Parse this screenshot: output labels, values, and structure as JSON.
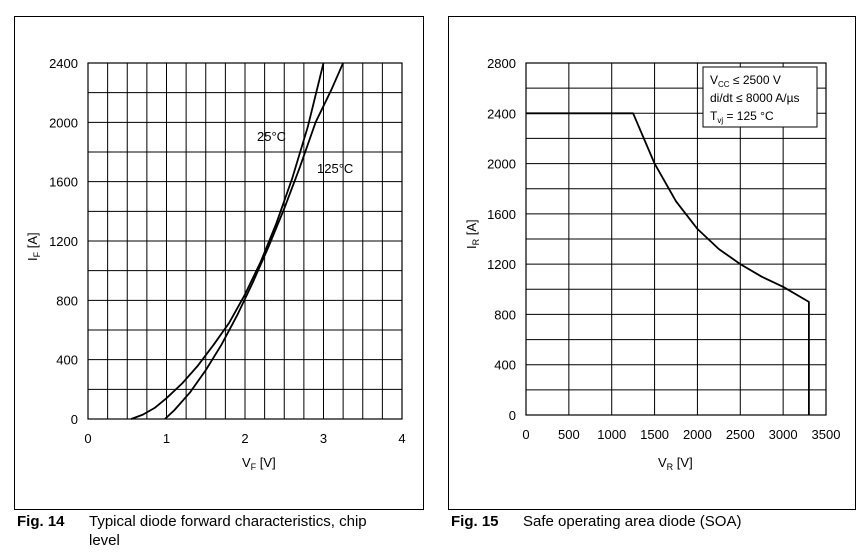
{
  "figures": [
    {
      "caption_number": "Fig. 14",
      "caption_text": "Typical diode forward characteristics, chip level"
    },
    {
      "caption_number": "Fig. 15",
      "caption_text": "Safe operating area diode (SOA)"
    }
  ],
  "chart_data": [
    {
      "type": "line",
      "title": "",
      "xlabel": "VF [V]",
      "ylabel": "IF [A]",
      "xlim": [
        0,
        4
      ],
      "ylim": [
        0,
        2400
      ],
      "xticks": [
        0,
        1,
        2,
        3,
        4
      ],
      "yticks": [
        0,
        400,
        800,
        1200,
        1600,
        2000,
        2400
      ],
      "grid": true,
      "series": [
        {
          "name": "25°C",
          "x": [
            0.55,
            0.7,
            0.85,
            1.0,
            1.2,
            1.4,
            1.6,
            1.8,
            2.0,
            2.2,
            2.4,
            2.6,
            2.8,
            3.0
          ],
          "y": [
            0,
            30,
            75,
            140,
            240,
            360,
            500,
            650,
            840,
            1060,
            1320,
            1620,
            1970,
            2400
          ]
        },
        {
          "name": "125°C",
          "x": [
            0.98,
            1.1,
            1.3,
            1.5,
            1.7,
            1.9,
            2.1,
            2.3,
            2.5,
            2.7,
            2.9,
            3.1,
            3.25
          ],
          "y": [
            0,
            60,
            180,
            330,
            500,
            700,
            920,
            1160,
            1420,
            1700,
            2000,
            2220,
            2400
          ]
        }
      ],
      "annotations": [
        "25°C",
        "125°C"
      ]
    },
    {
      "type": "line",
      "title": "",
      "xlabel": "VR [V]",
      "ylabel": "IR [A]",
      "xlim": [
        0,
        3500
      ],
      "ylim": [
        0,
        2800
      ],
      "xticks": [
        0,
        500,
        1000,
        1500,
        2000,
        2500,
        3000,
        3500
      ],
      "yticks": [
        0,
        400,
        800,
        1200,
        1600,
        2000,
        2400,
        2800
      ],
      "grid": true,
      "series": [
        {
          "name": "",
          "x": [
            0,
            1250,
            1500,
            1750,
            2000,
            2250,
            2500,
            2750,
            3000,
            3300,
            3300
          ],
          "y": [
            2400,
            2400,
            2000,
            1700,
            1480,
            1320,
            1200,
            1100,
            1020,
            900,
            0
          ]
        }
      ],
      "legend_box": [
        "VCC ≤ 2500 V",
        "di/dt ≤ 8000 A/µs",
        "Tvj = 125 °C"
      ],
      "legend_position": "top-right"
    }
  ]
}
